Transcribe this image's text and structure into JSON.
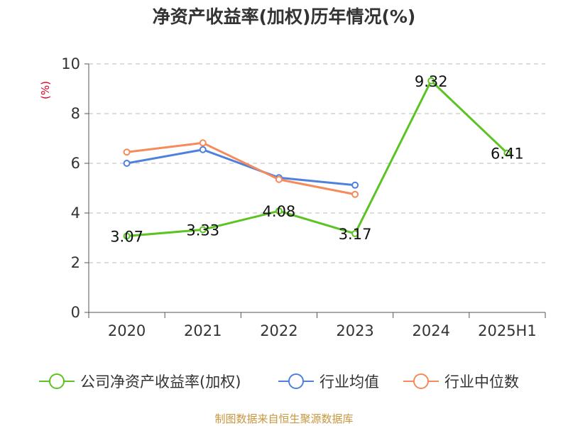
{
  "chart_data": {
    "type": "line",
    "title": "净资产收益率(加权)历年情况(%)",
    "ylabel": "(%)",
    "categories": [
      "2020",
      "2021",
      "2022",
      "2023",
      "2024",
      "2025H1"
    ],
    "ylim": [
      0,
      10
    ],
    "yticks": [
      0,
      2,
      4,
      6,
      8,
      10
    ],
    "grid": true,
    "legend_position": "bottom",
    "series": [
      {
        "name": "公司净资产收益率(加权)",
        "color": "#5bc322",
        "values": [
          3.07,
          3.33,
          4.08,
          3.17,
          9.32,
          6.41
        ],
        "labels": [
          "3.07",
          "3.33",
          "4.08",
          "3.17",
          "9.32",
          "6.41"
        ]
      },
      {
        "name": "行业均值",
        "color": "#4f81dc",
        "values": [
          6.0,
          6.55,
          5.42,
          5.12,
          null,
          null
        ]
      },
      {
        "name": "行业中位数",
        "color": "#f58a5a",
        "values": [
          6.45,
          6.82,
          5.35,
          4.75,
          null,
          null
        ]
      }
    ]
  },
  "source_note": "制图数据来自恒生聚源数据库"
}
